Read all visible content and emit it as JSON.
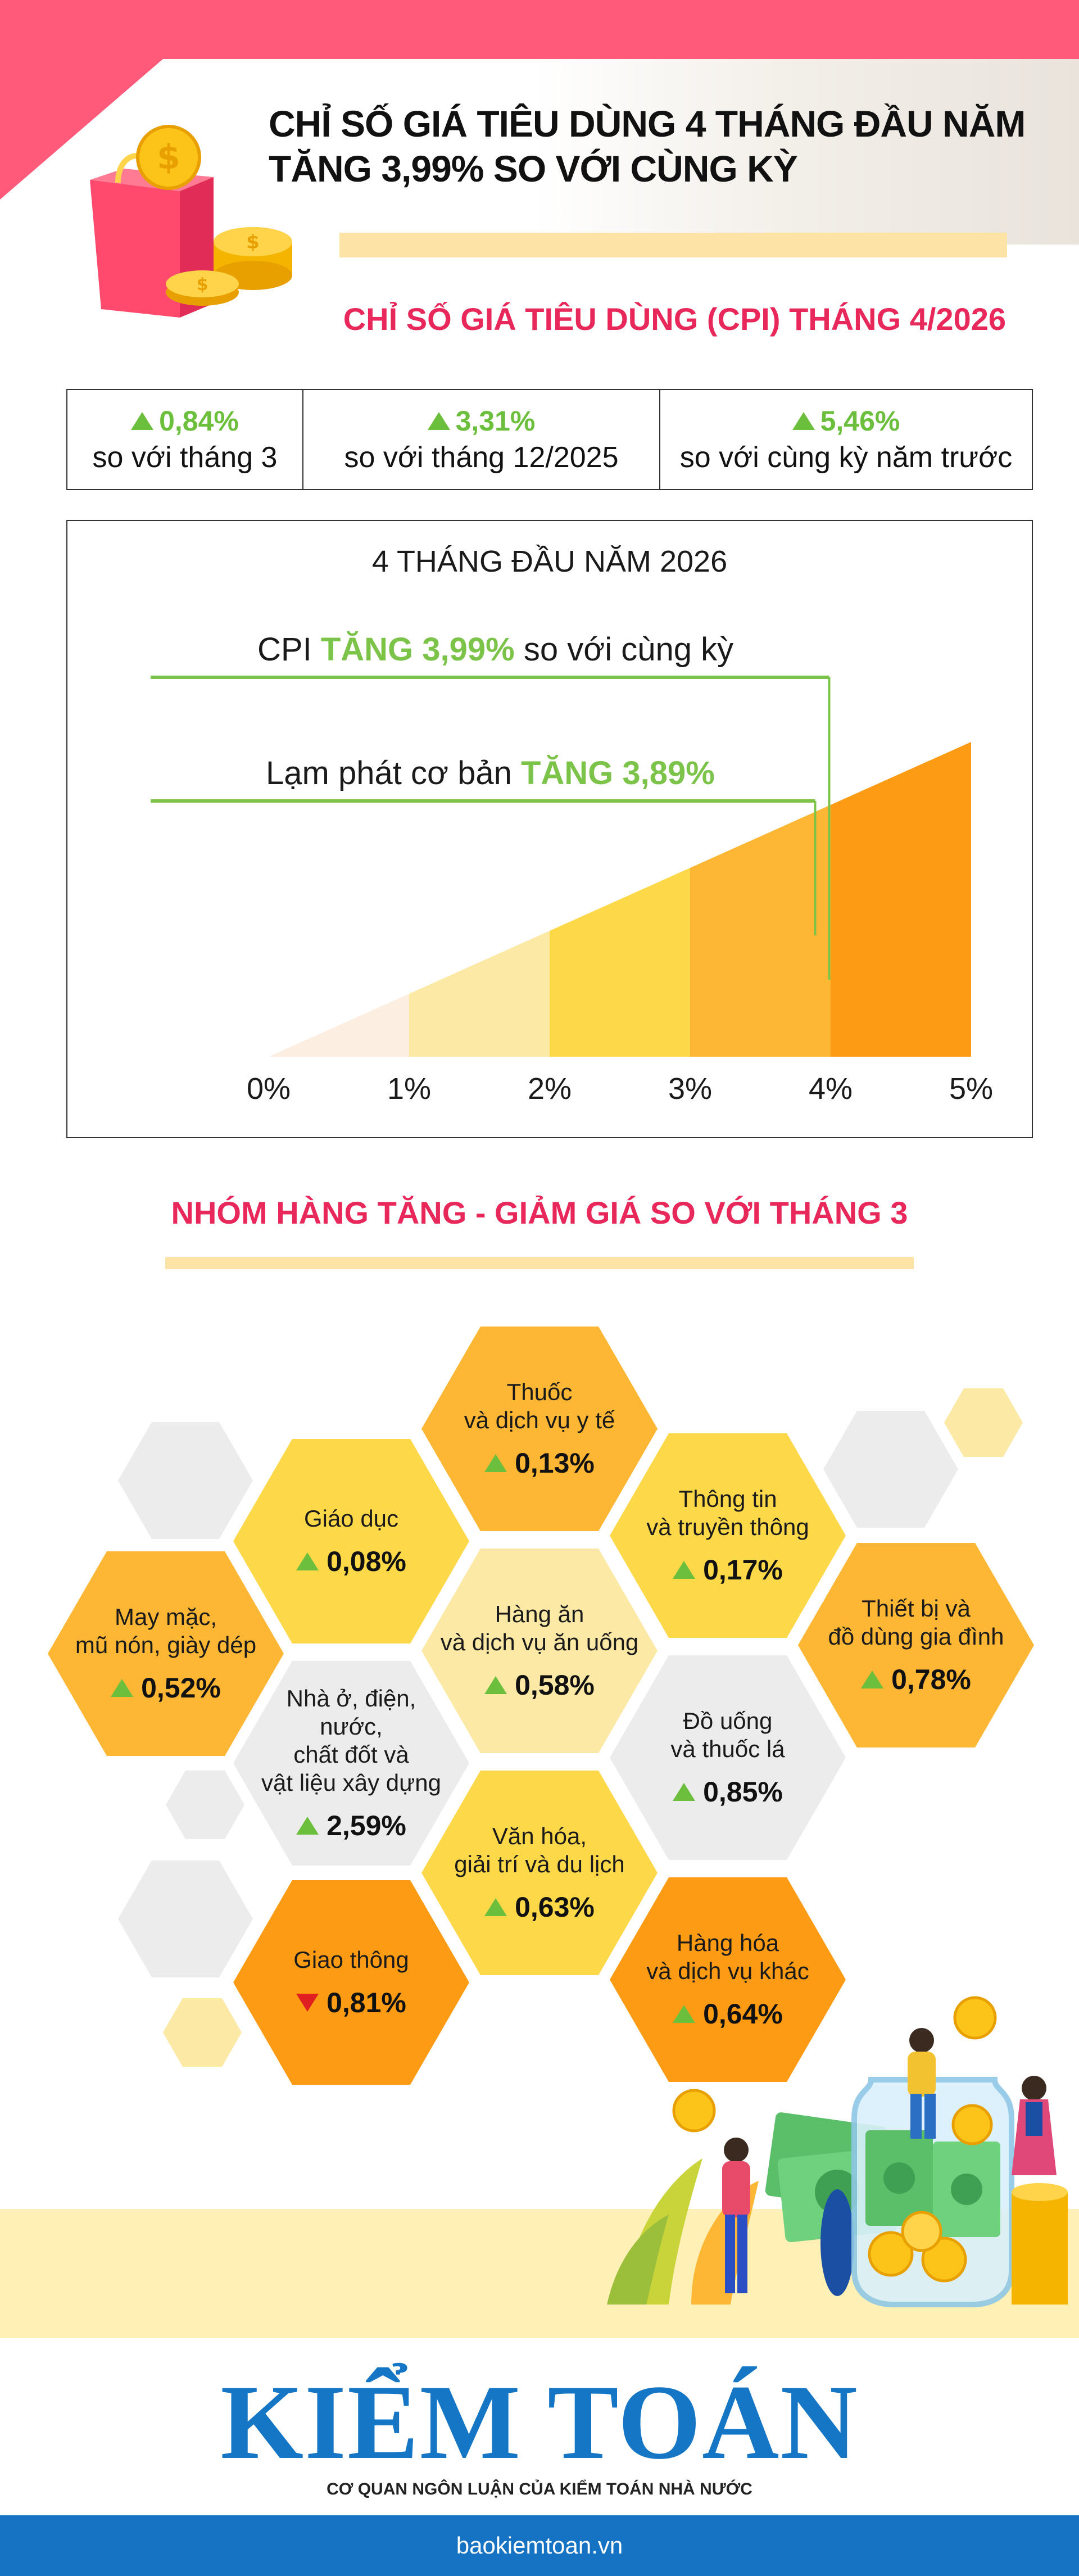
{
  "header": {
    "title_line1": "CHỈ SỐ GIÁ TIÊU DÙNG 4 THÁNG ĐẦU NĂM",
    "title_line2": "TĂNG 3,99% SO VỚI CÙNG KỲ",
    "cpi_heading": "CHỈ SỐ GIÁ TIÊU DÙNG (CPI) THÁNG 4/2026"
  },
  "stats": [
    {
      "value": "0,84%",
      "label": "so với tháng 3"
    },
    {
      "value": "3,31%",
      "label": "so với tháng 12/2025"
    },
    {
      "value": "5,46%",
      "label": "so với cùng kỳ năm trước"
    }
  ],
  "chart_data": {
    "type": "bar",
    "title": "4 THÁNG ĐẦU NĂM 2026",
    "x_ticks": [
      "0%",
      "1%",
      "2%",
      "3%",
      "4%",
      "5%"
    ],
    "xlim": [
      0,
      5
    ],
    "annotations": [
      {
        "prefix": "CPI ",
        "highlight": "TĂNG 3,99%",
        "suffix": " so với cùng kỳ",
        "value": 3.99
      },
      {
        "prefix": "Lạm phát cơ bản ",
        "highlight": "TĂNG 3,89%",
        "suffix": "",
        "value": 3.89
      }
    ],
    "band_colors": [
      "#fdeee2",
      "#fde9a6",
      "#fdd94a",
      "#fdb734",
      "#fd9c14"
    ],
    "highlight_color": "#7cc34a"
  },
  "groups": {
    "heading": "NHÓM HÀNG TĂNG - GIẢM GIÁ SO VỚI THÁNG 3",
    "items": [
      {
        "name": "Thuốc\nvà dịch vụ y tế",
        "value": "0,13%",
        "dir": "up",
        "color": "#fdb734"
      },
      {
        "name": "Giáo dục",
        "value": "0,08%",
        "dir": "up",
        "color": "#fdd94a"
      },
      {
        "name": "Thông tin\nvà truyền thông",
        "value": "0,17%",
        "dir": "up",
        "color": "#fdd94a"
      },
      {
        "name": "May mặc,\nmũ nón, giày dép",
        "value": "0,52%",
        "dir": "up",
        "color": "#fdb734"
      },
      {
        "name": "Hàng ăn\nvà dịch vụ ăn uống",
        "value": "0,58%",
        "dir": "up",
        "color": "#fde9a6"
      },
      {
        "name": "Thiết bị và\nđồ dùng gia đình",
        "value": "0,78%",
        "dir": "up",
        "color": "#fdb734"
      },
      {
        "name": "Nhà ở, điện,\nnước,\nchất đốt và\nvật liệu xây dựng",
        "value": "2,59%",
        "dir": "up",
        "color": "#ececec"
      },
      {
        "name": "Đồ uống\nvà thuốc lá",
        "value": "0,85%",
        "dir": "up",
        "color": "#ececec"
      },
      {
        "name": "Văn hóa,\ngiải trí và du lịch",
        "value": "0,63%",
        "dir": "up",
        "color": "#fdd94a"
      },
      {
        "name": "Giao thông",
        "value": "0,81%",
        "dir": "down",
        "color": "#fd9c14"
      },
      {
        "name": "Hàng hóa\nvà dịch vụ khác",
        "value": "0,64%",
        "dir": "up",
        "color": "#fd9c14"
      }
    ]
  },
  "footer": {
    "brand": "KIỂM TOÁN",
    "brand_sub": "CƠ QUAN NGÔN LUẬN CỦA KIỂM TOÁN NHÀ NƯỚC",
    "url": "baokiemtoan.vn",
    "brand_color": "#1676c6"
  }
}
